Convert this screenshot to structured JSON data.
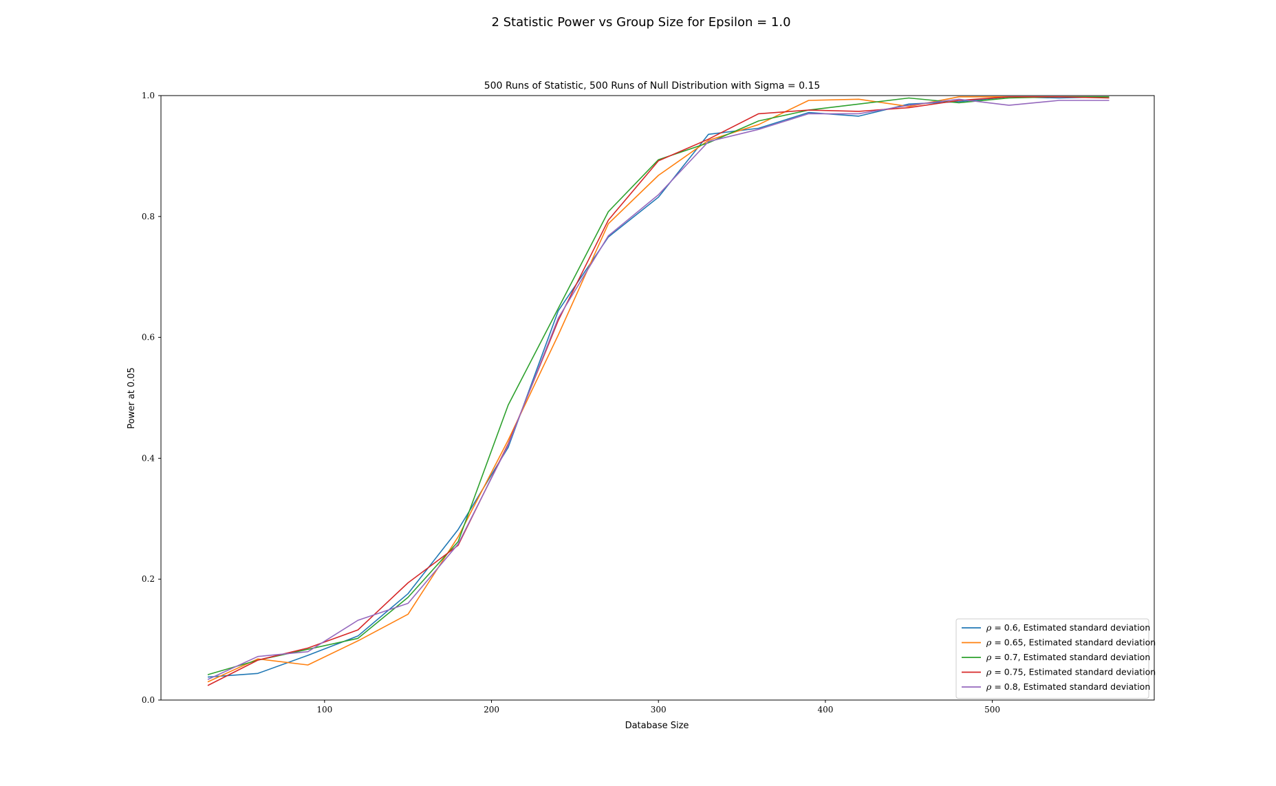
{
  "chart_data": {
    "type": "line",
    "suptitle": "2 Statistic Power vs Group Size for Epsilon = 1.0",
    "title": "500 Runs of Statistic, 500 Runs of Null Distribution with Sigma = 0.15",
    "xlabel": "Database Size",
    "ylabel": "Power at 0.05",
    "xlim": [
      2,
      597
    ],
    "ylim": [
      0.0,
      1.0
    ],
    "xticks": [
      100,
      200,
      300,
      400,
      500
    ],
    "xtick_labels": [
      "100",
      "200",
      "300",
      "400",
      "500"
    ],
    "yticks": [
      0.0,
      0.2,
      0.4,
      0.6,
      0.8,
      1.0
    ],
    "ytick_labels": [
      "0.0",
      "0.2",
      "0.4",
      "0.6",
      "0.8",
      "1.0"
    ],
    "legend_position": "lower right",
    "x": [
      30,
      60,
      90,
      120,
      150,
      180,
      210,
      240,
      270,
      300,
      330,
      360,
      390,
      420,
      450,
      480,
      510,
      540,
      570
    ],
    "series": [
      {
        "name": "ρ = 0.6, Estimated standard deviation",
        "rho": "0.6",
        "rest": ", Estimated standard deviation",
        "color": "#1f77b4",
        "values": [
          0.038,
          0.044,
          0.074,
          0.106,
          0.176,
          0.282,
          0.418,
          0.644,
          0.766,
          0.832,
          0.936,
          0.946,
          0.972,
          0.966,
          0.986,
          0.99,
          0.998,
          0.996,
          0.998
        ]
      },
      {
        "name": "ρ = 0.65, Estimated standard deviation",
        "rho": "0.65",
        "rest": ", Estimated standard deviation",
        "color": "#ff7f0e",
        "values": [
          0.03,
          0.068,
          0.058,
          0.098,
          0.142,
          0.27,
          0.43,
          0.604,
          0.788,
          0.868,
          0.926,
          0.952,
          0.992,
          0.994,
          0.982,
          0.998,
          0.998,
          0.998,
          0.998
        ]
      },
      {
        "name": "ρ = 0.7, Estimated standard deviation",
        "rho": "0.7",
        "rest": ", Estimated standard deviation",
        "color": "#2ca02c",
        "values": [
          0.042,
          0.066,
          0.084,
          0.102,
          0.17,
          0.262,
          0.488,
          0.648,
          0.808,
          0.894,
          0.922,
          0.958,
          0.976,
          0.986,
          0.996,
          0.988,
          0.996,
          0.998,
          0.998
        ]
      },
      {
        "name": "ρ = 0.75, Estimated standard deviation",
        "rho": "0.75",
        "rest": ", Estimated standard deviation",
        "color": "#d62728",
        "values": [
          0.024,
          0.066,
          0.086,
          0.116,
          0.194,
          0.256,
          0.424,
          0.628,
          0.794,
          0.892,
          0.928,
          0.97,
          0.976,
          0.974,
          0.98,
          0.992,
          0.998,
          0.998,
          0.996
        ]
      },
      {
        "name": "ρ = 0.8, Estimated standard deviation",
        "rho": "0.8",
        "rest": ", Estimated standard deviation",
        "color": "#9467bd",
        "values": [
          0.034,
          0.072,
          0.08,
          0.132,
          0.16,
          0.258,
          0.422,
          0.632,
          0.768,
          0.836,
          0.924,
          0.944,
          0.97,
          0.97,
          0.984,
          0.994,
          0.984,
          0.992,
          0.992
        ]
      }
    ]
  }
}
